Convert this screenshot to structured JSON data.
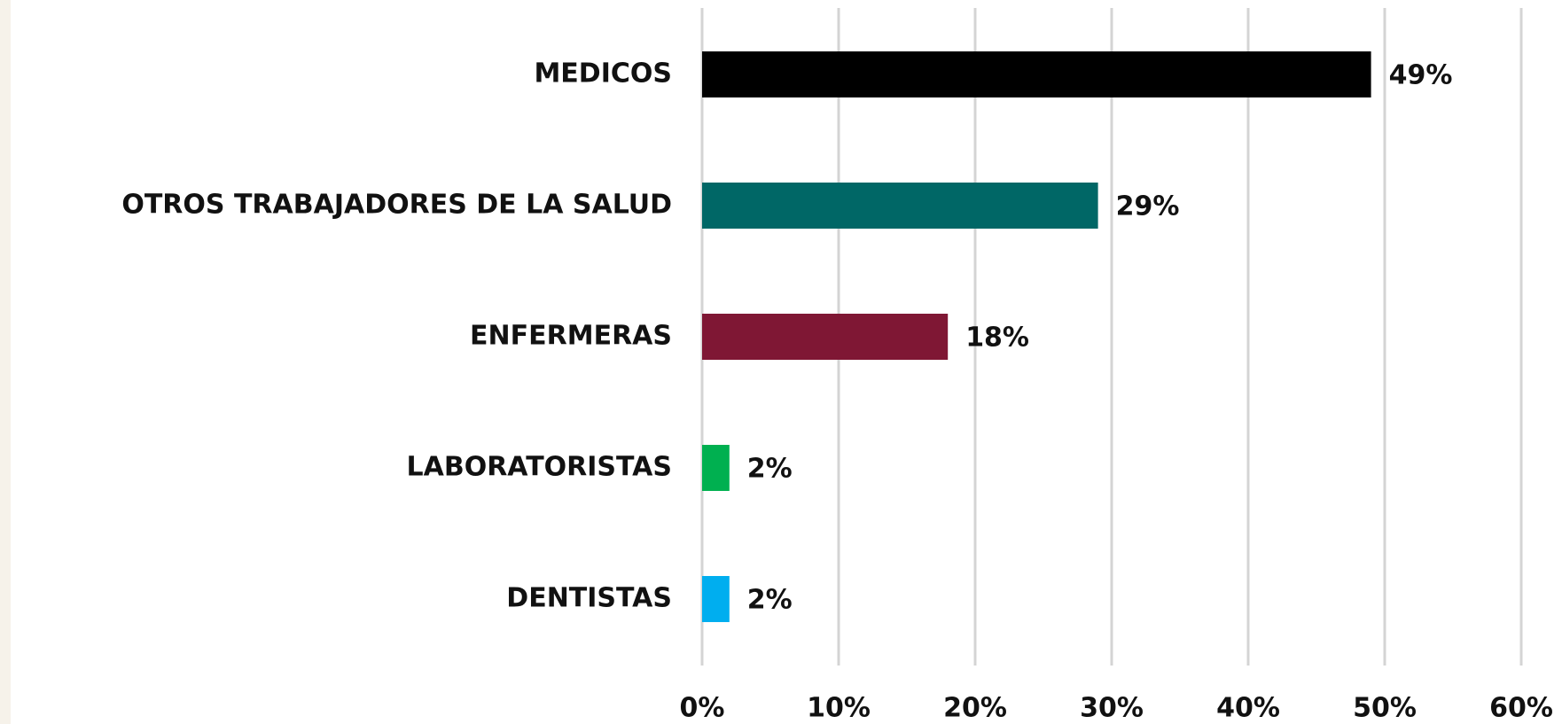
{
  "chart_data": {
    "type": "barh",
    "categories": [
      "MEDICOS",
      "OTROS TRABAJADORES DE LA SALUD",
      "ENFERMERAS",
      "LABORATORISTAS",
      "DENTISTAS"
    ],
    "values": [
      49,
      29,
      18,
      2,
      2
    ],
    "value_labels": [
      "49%",
      "29%",
      "18%",
      "2%",
      "2%"
    ],
    "colors": [
      "#000000",
      "#006766",
      "#7f1734",
      "#00b050",
      "#00aeef"
    ],
    "xlim": [
      0,
      60
    ],
    "xticks": [
      {
        "value": 0,
        "label": "0%"
      },
      {
        "value": 10,
        "label": "10%"
      },
      {
        "value": 20,
        "label": "20%"
      },
      {
        "value": 30,
        "label": "30%"
      },
      {
        "value": 40,
        "label": "40%"
      },
      {
        "value": 50,
        "label": "50%"
      },
      {
        "value": 60,
        "label": "60%"
      }
    ],
    "grid": true
  }
}
